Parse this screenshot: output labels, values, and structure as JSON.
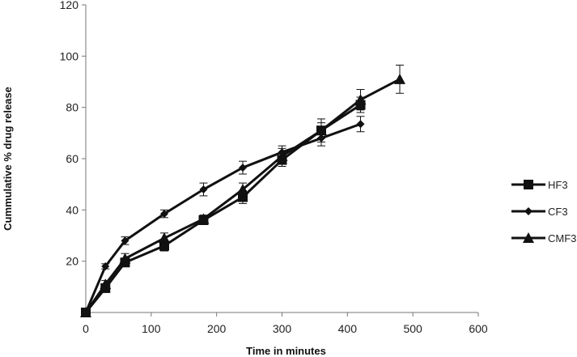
{
  "chart_data": {
    "type": "line",
    "title": "",
    "xlabel": "Time in minutes",
    "ylabel": "Cummulative % drug release",
    "xlim": [
      0,
      600
    ],
    "ylim": [
      0,
      120
    ],
    "x_ticks": [
      0,
      100,
      200,
      300,
      400,
      500,
      600
    ],
    "y_ticks": [
      20,
      40,
      60,
      80,
      100,
      120
    ],
    "grid": false,
    "legend_position": "right",
    "error_bars": true,
    "series": [
      {
        "name": "HF3",
        "marker": "square",
        "x": [
          0,
          30,
          60,
          120,
          180,
          240,
          300,
          360,
          420
        ],
        "y": [
          0,
          9.5,
          19.5,
          26,
          36,
          45,
          59.5,
          71,
          81
        ],
        "error": [
          0,
          1.5,
          1.5,
          2,
          1.5,
          2.5,
          2.5,
          3,
          3
        ]
      },
      {
        "name": "CF3",
        "marker": "diamond",
        "x": [
          0,
          30,
          60,
          120,
          180,
          240,
          300,
          360,
          420
        ],
        "y": [
          0,
          18,
          28,
          38.5,
          48,
          56.5,
          62.5,
          68,
          73.5
        ],
        "error": [
          0,
          1,
          1.5,
          1.5,
          2.5,
          2.5,
          2.5,
          3,
          3
        ]
      },
      {
        "name": "CMF3",
        "marker": "triangle",
        "x": [
          0,
          30,
          60,
          120,
          180,
          240,
          300,
          360,
          420,
          480
        ],
        "y": [
          0,
          11,
          21,
          29,
          36.5,
          48,
          61,
          71,
          83,
          91
        ],
        "error": [
          0,
          1.5,
          2,
          2,
          1.5,
          2.5,
          3,
          4.5,
          4,
          5.5
        ]
      }
    ]
  }
}
